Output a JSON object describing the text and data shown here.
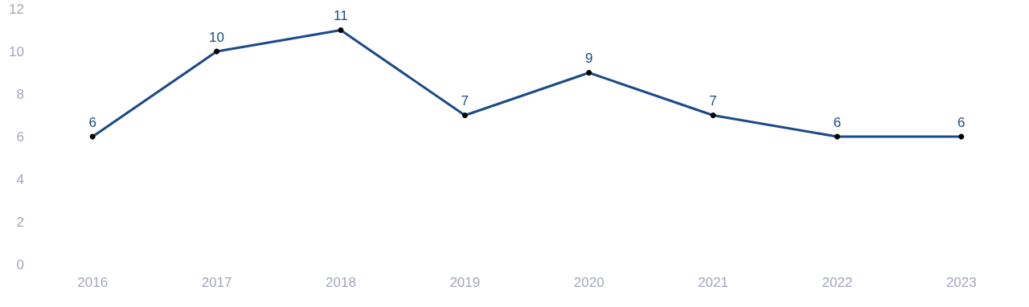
{
  "chart_data": {
    "type": "line",
    "categories": [
      "2016",
      "2017",
      "2018",
      "2019",
      "2020",
      "2021",
      "2022",
      "2023"
    ],
    "series": [
      {
        "color": "#1b4a87",
        "values": [
          6,
          10,
          11,
          7,
          9,
          7,
          6,
          6
        ]
      }
    ],
    "ylim": [
      0,
      12
    ],
    "yticks": [
      0,
      2,
      4,
      6,
      8,
      10,
      12
    ],
    "grid": false,
    "marker": "circle",
    "line_style": "solid",
    "data_labels": true
  }
}
